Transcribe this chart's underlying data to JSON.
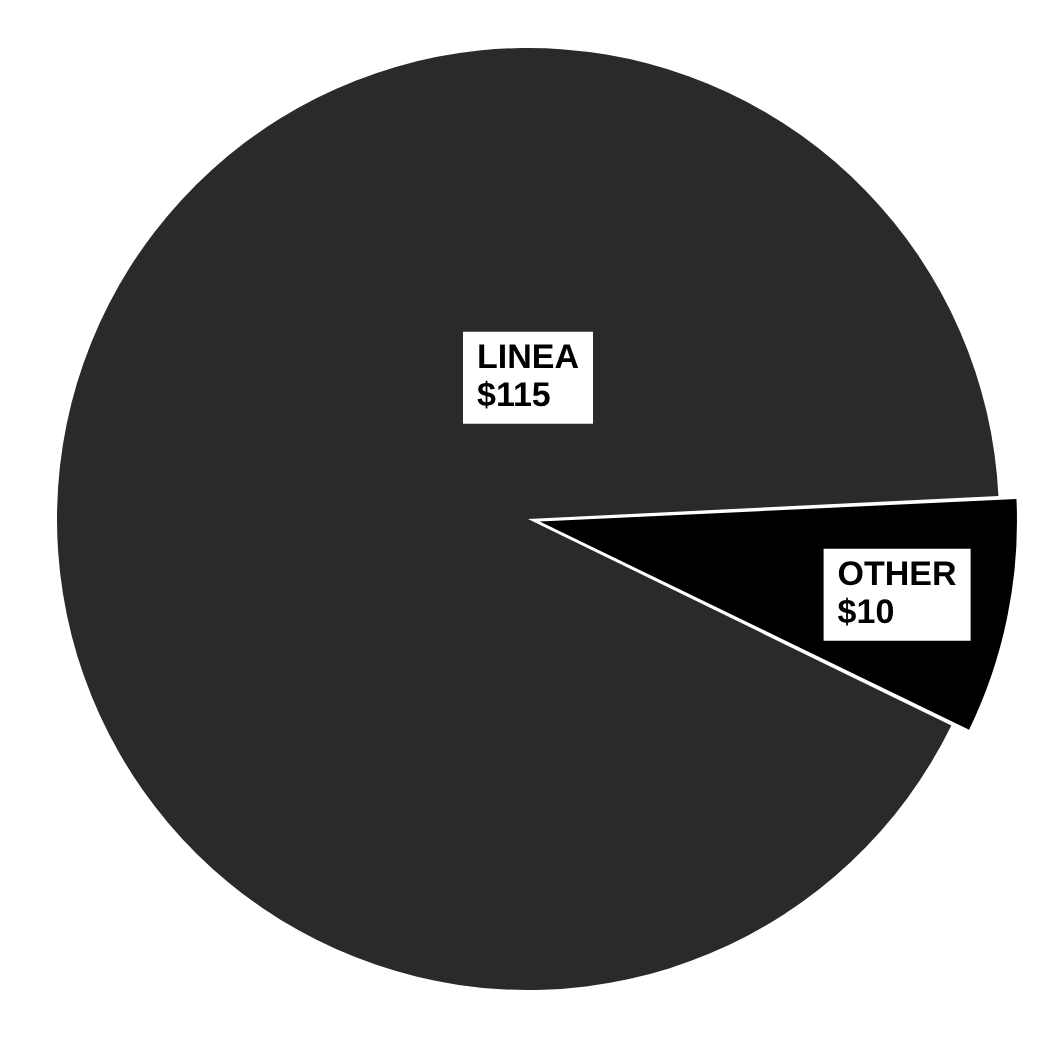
{
  "chart_data": {
    "type": "pie",
    "categories": [
      "LINEA",
      "OTHER"
    ],
    "values": [
      115,
      10
    ],
    "value_labels": [
      "$115",
      "$10"
    ],
    "colors": [
      "#2a2a2a",
      "#000000"
    ],
    "legend": false
  }
}
